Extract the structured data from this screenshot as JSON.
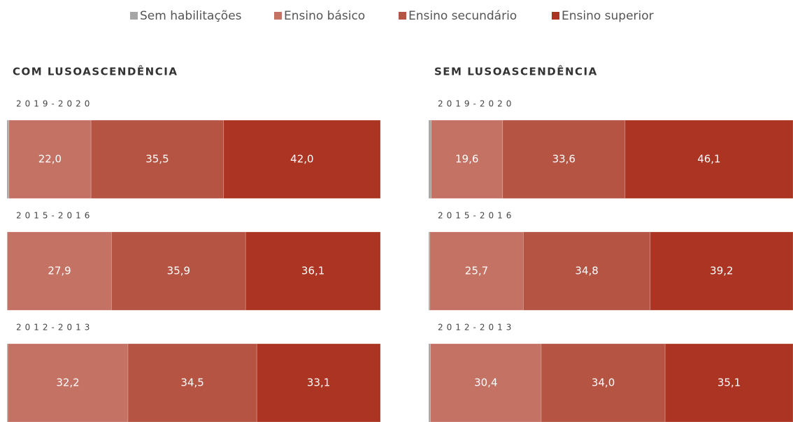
{
  "chart_data": [
    {
      "type": "stacked-bar-horizontal",
      "title": "COM LUSOASCENDÊNCIA",
      "categories": [
        "2019-2020",
        "2015-2016",
        "2012-2013"
      ],
      "xlim": [
        0,
        100
      ],
      "series": [
        {
          "name": "Sem habilitações",
          "color": "#a6a6a6",
          "values": [
            0.5,
            0.1,
            0.2
          ]
        },
        {
          "name": "Ensino básico",
          "color": "#c47264",
          "values": [
            22.0,
            27.9,
            32.2
          ],
          "value_labels": [
            "22,0",
            "27,9",
            "32,2"
          ]
        },
        {
          "name": "Ensino secundário",
          "color": "#b55442",
          "values": [
            35.5,
            35.9,
            34.5
          ],
          "value_labels": [
            "35,5",
            "35,9",
            "34,5"
          ]
        },
        {
          "name": "Ensino superior",
          "color": "#ab3522",
          "values": [
            42.0,
            36.1,
            33.1
          ],
          "value_labels": [
            "42,0",
            "36,1",
            "33,1"
          ]
        }
      ]
    },
    {
      "type": "stacked-bar-horizontal",
      "title": "SEM LUSOASCENDÊNCIA",
      "categories": [
        "2019-2020",
        "2015-2016",
        "2012-2013"
      ],
      "xlim": [
        0,
        100
      ],
      "series": [
        {
          "color": "#a6a6a6",
          "values": [
            0.7,
            0.3,
            0.5
          ]
        },
        {
          "color": "#c47264",
          "values": [
            19.6,
            25.7,
            30.4
          ],
          "value_labels": [
            "19,6",
            "25,7",
            "30,4"
          ]
        },
        {
          "color": "#b55442",
          "values": [
            33.6,
            34.8,
            34.0
          ],
          "value_labels": [
            "33,6",
            "34,8",
            "34,0"
          ]
        },
        {
          "color": "#ab3522",
          "values": [
            46.1,
            39.2,
            35.1
          ],
          "value_labels": [
            "46,1",
            "39,2",
            "35,1"
          ]
        }
      ]
    }
  ]
}
